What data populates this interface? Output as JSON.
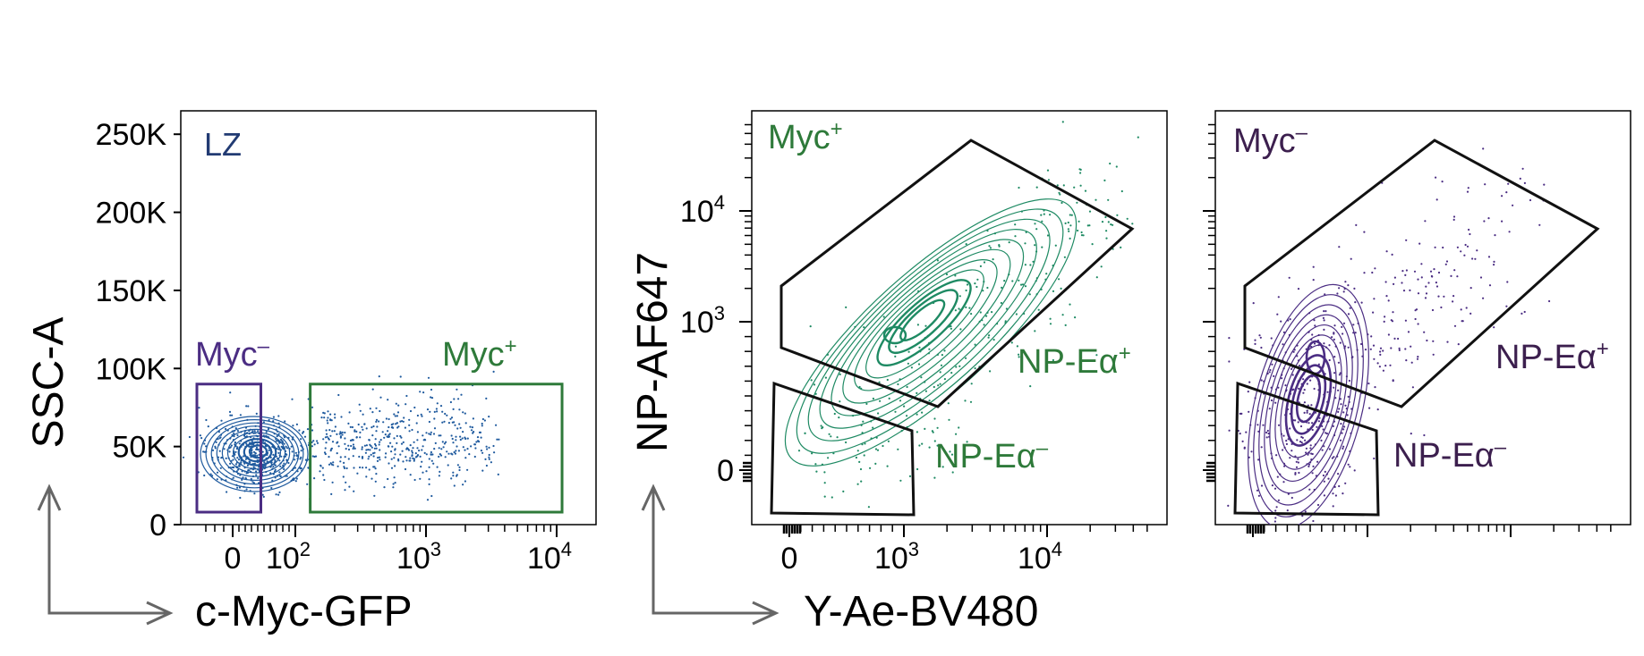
{
  "colors": {
    "blue": "#1f5a9e",
    "lz_text": "#223b73",
    "green": "#2e7a3a",
    "green_contour": "#1e8a63",
    "purple": "#4b2d83",
    "dark_purple": "#3c1f4e",
    "gate": "#111111",
    "axis": "#000000",
    "arrow": "#666666"
  },
  "axis_arrows": [
    {
      "ylabel": "SSC-A",
      "xlabel": "c-Myc-GFP"
    },
    {
      "ylabel": "NP-AF647",
      "xlabel": "Y-Ae-BV480"
    }
  ],
  "chart_data": [
    {
      "type": "scatter",
      "plot": "contour-dot",
      "annotation": "LZ",
      "x_scale": "biexponential",
      "y_scale": "linear",
      "x_ticks": [
        {
          "value": 0,
          "label": "0"
        },
        {
          "value": 100,
          "label": "10",
          "sup": "2"
        },
        {
          "value": 1000,
          "label": "10",
          "sup": "3"
        },
        {
          "value": 10000,
          "label": "10",
          "sup": "4"
        }
      ],
      "y_ticks": [
        {
          "value": 0,
          "label": "0"
        },
        {
          "value": 50000,
          "label": "50K"
        },
        {
          "value": 100000,
          "label": "100K"
        },
        {
          "value": 150000,
          "label": "150K"
        },
        {
          "value": 200000,
          "label": "200K"
        },
        {
          "value": 250000,
          "label": "250K"
        }
      ],
      "ylim": [
        0,
        265000
      ],
      "gates": [
        {
          "name": "Myc",
          "sup": "–",
          "color": "purple",
          "x": [
            -40,
            45
          ],
          "y": [
            8000,
            90000
          ]
        },
        {
          "name": "Myc",
          "sup": "+",
          "color": "green",
          "x": [
            130,
            11000
          ],
          "y": [
            8000,
            90000
          ]
        }
      ]
    },
    {
      "type": "scatter",
      "plot": "contour-dot",
      "annotation": "Myc",
      "annotation_sup": "+",
      "annotation_color": "green",
      "x_scale": "biexponential",
      "y_scale": "biexponential",
      "x_ticks": [
        {
          "value": 0,
          "label": "0"
        },
        {
          "value": 1000,
          "label": "10",
          "sup": "3"
        },
        {
          "value": 10000,
          "label": "10",
          "sup": "4"
        }
      ],
      "y_ticks": [
        {
          "value": 0,
          "label": "0"
        },
        {
          "value": 1000,
          "label": "10",
          "sup": "3"
        },
        {
          "value": 10000,
          "label": "10",
          "sup": "4"
        }
      ],
      "gates": [
        {
          "name": "NP-Eα",
          "sup": "+",
          "color": "green"
        },
        {
          "name": "NP-Eα",
          "sup": "–",
          "color": "green"
        }
      ]
    },
    {
      "type": "scatter",
      "plot": "contour-dot",
      "annotation": "Myc",
      "annotation_sup": "–",
      "annotation_color": "dark_purple",
      "x_scale": "biexponential",
      "y_scale": "biexponential",
      "gates": [
        {
          "name": "NP-Eα",
          "sup": "+",
          "color": "dark_purple"
        },
        {
          "name": "NP-Eα",
          "sup": "–",
          "color": "dark_purple"
        }
      ]
    }
  ]
}
